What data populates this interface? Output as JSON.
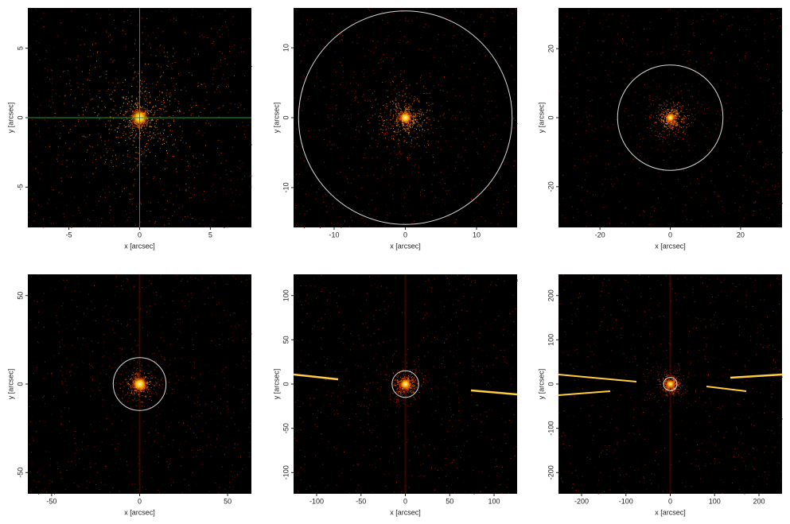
{
  "chart_data": [
    {
      "type": "image",
      "xlabel": "x [arcsec]",
      "ylabel": "y [arcsec]",
      "xlim": [
        -7.9,
        7.9
      ],
      "ylim": [
        -7.9,
        7.9
      ],
      "xticks": [
        -5,
        0,
        5
      ],
      "yticks": [
        -5,
        0,
        5
      ],
      "crosshair": {
        "x": 0,
        "y": 0
      },
      "crosshair_color": "#1f9a1f"
    },
    {
      "type": "image",
      "xlabel": "x [arcsec]",
      "ylabel": "y [arcsec]",
      "xlim": [
        -15.7,
        15.7
      ],
      "ylim": [
        -15.7,
        15.7
      ],
      "xticks": [
        -10,
        0,
        10
      ],
      "yticks": [
        -10,
        0,
        10
      ],
      "circle_radius": 15
    },
    {
      "type": "image",
      "xlabel": "x [arcsec]",
      "ylabel": "y [arcsec]",
      "xlim": [
        -31.8,
        31.8
      ],
      "ylim": [
        -31.8,
        31.8
      ],
      "xticks": [
        -20,
        0,
        20
      ],
      "yticks": [
        -20,
        0,
        20
      ],
      "circle_radius": 15
    },
    {
      "type": "image",
      "xlabel": "x [arcsec]",
      "ylabel": "y [arcsec]",
      "xlim": [
        -63.5,
        63.5
      ],
      "ylim": [
        -62,
        62
      ],
      "xticks": [
        -50,
        0,
        50
      ],
      "yticks": [
        -50,
        0,
        50
      ],
      "circle_radius": 15
    },
    {
      "type": "image",
      "xlabel": "x [arcsec]",
      "ylabel": "y [arcsec]",
      "xlim": [
        -126,
        126
      ],
      "ylim": [
        -124,
        124
      ],
      "xticks": [
        -100,
        -50,
        0,
        50,
        100
      ],
      "yticks": [
        -100,
        -50,
        0,
        50,
        100
      ],
      "circle_radius": 15
    },
    {
      "type": "image",
      "xlabel": "x [arcsec]",
      "ylabel": "y [arcsec]",
      "xlim": [
        -252,
        252
      ],
      "ylim": [
        -248,
        248
      ],
      "xticks": [
        -200,
        -100,
        0,
        100,
        200
      ],
      "yticks": [
        -200,
        -100,
        0,
        100,
        200
      ],
      "circle_radius": 15
    }
  ]
}
